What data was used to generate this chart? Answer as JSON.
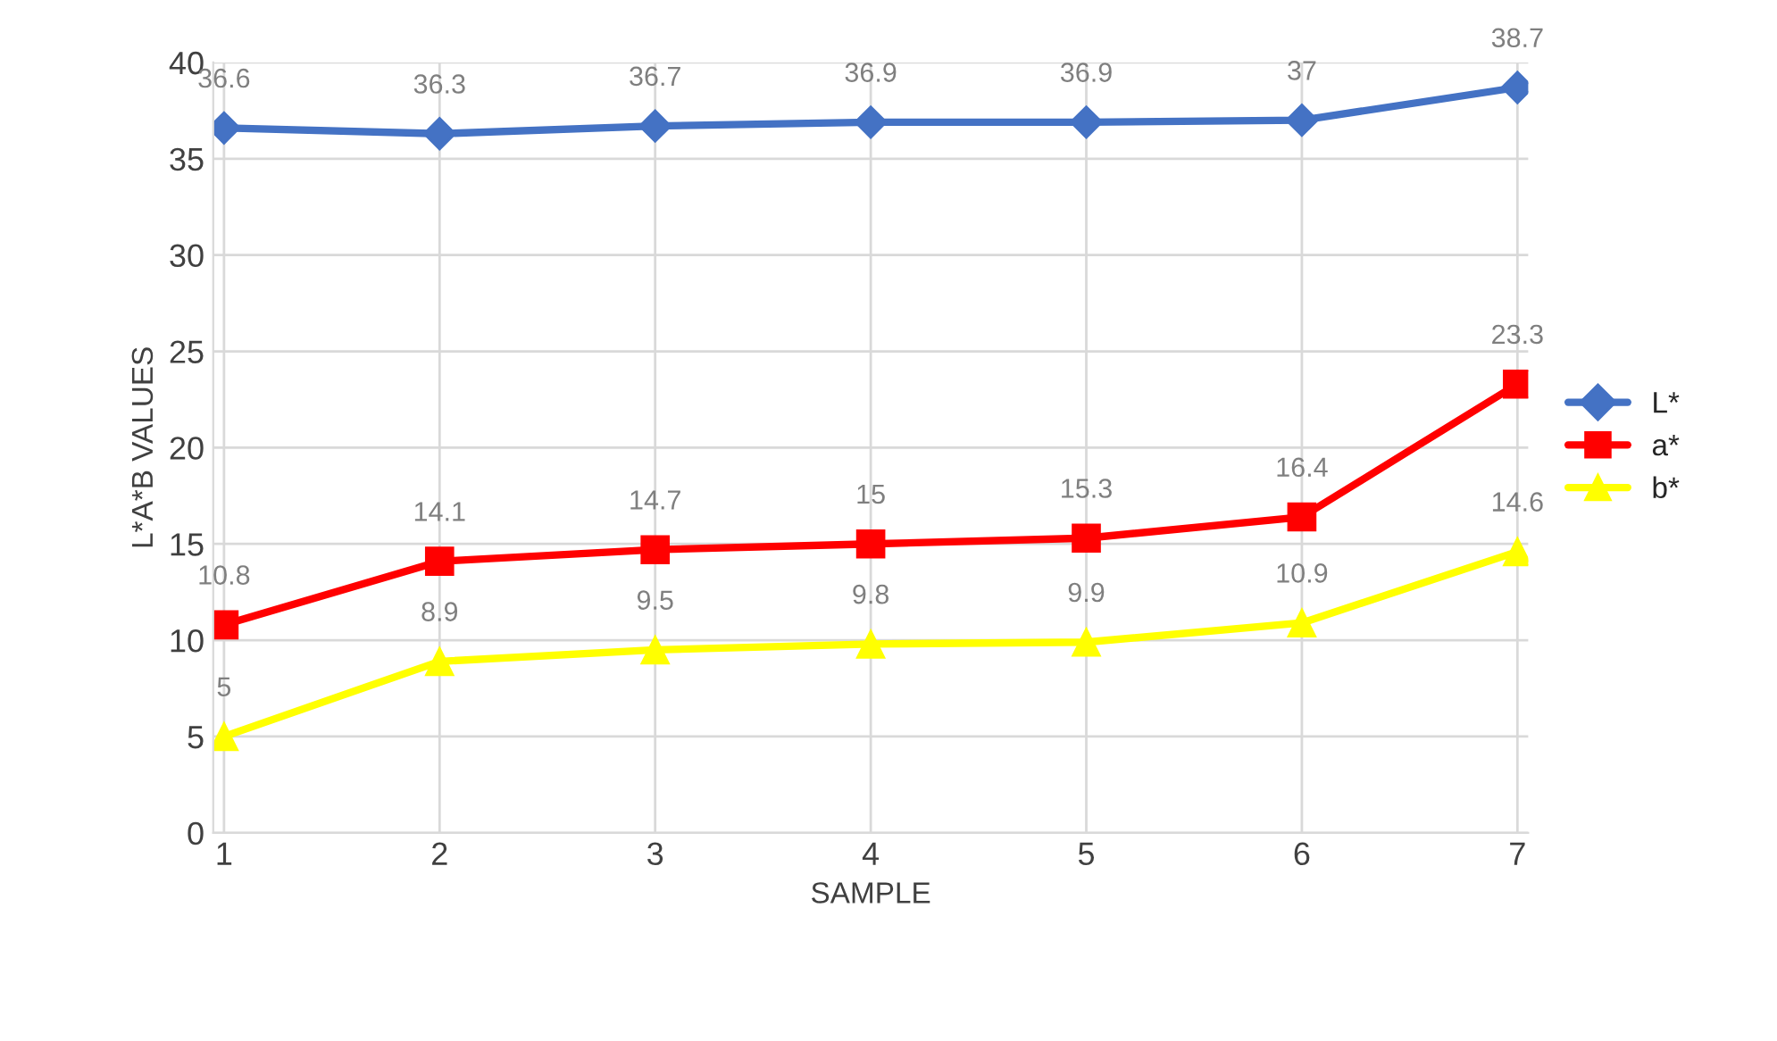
{
  "chart_data": {
    "type": "line",
    "xlabel": "SAMPLE",
    "ylabel": "L*A*B VALUES",
    "categories": [
      "1",
      "2",
      "3",
      "4",
      "5",
      "6",
      "7"
    ],
    "series": [
      {
        "name": "L*",
        "color": "#4472c4",
        "marker": "diamond",
        "values": [
          36.6,
          36.3,
          36.7,
          36.9,
          36.9,
          37,
          38.7
        ]
      },
      {
        "name": "a*",
        "color": "#ff0000",
        "marker": "square",
        "values": [
          10.8,
          14.1,
          14.7,
          15,
          15.3,
          16.4,
          23.3
        ]
      },
      {
        "name": "b*",
        "color": "#ffff00",
        "marker": "triangle",
        "values": [
          5,
          8.9,
          9.5,
          9.8,
          9.9,
          10.9,
          14.6
        ]
      }
    ],
    "ylim": [
      0,
      40
    ],
    "yticks": [
      0,
      5,
      10,
      15,
      20,
      25,
      30,
      35,
      40
    ],
    "grid": true,
    "legend": "right",
    "data_labels": true,
    "line_style": "solid"
  }
}
